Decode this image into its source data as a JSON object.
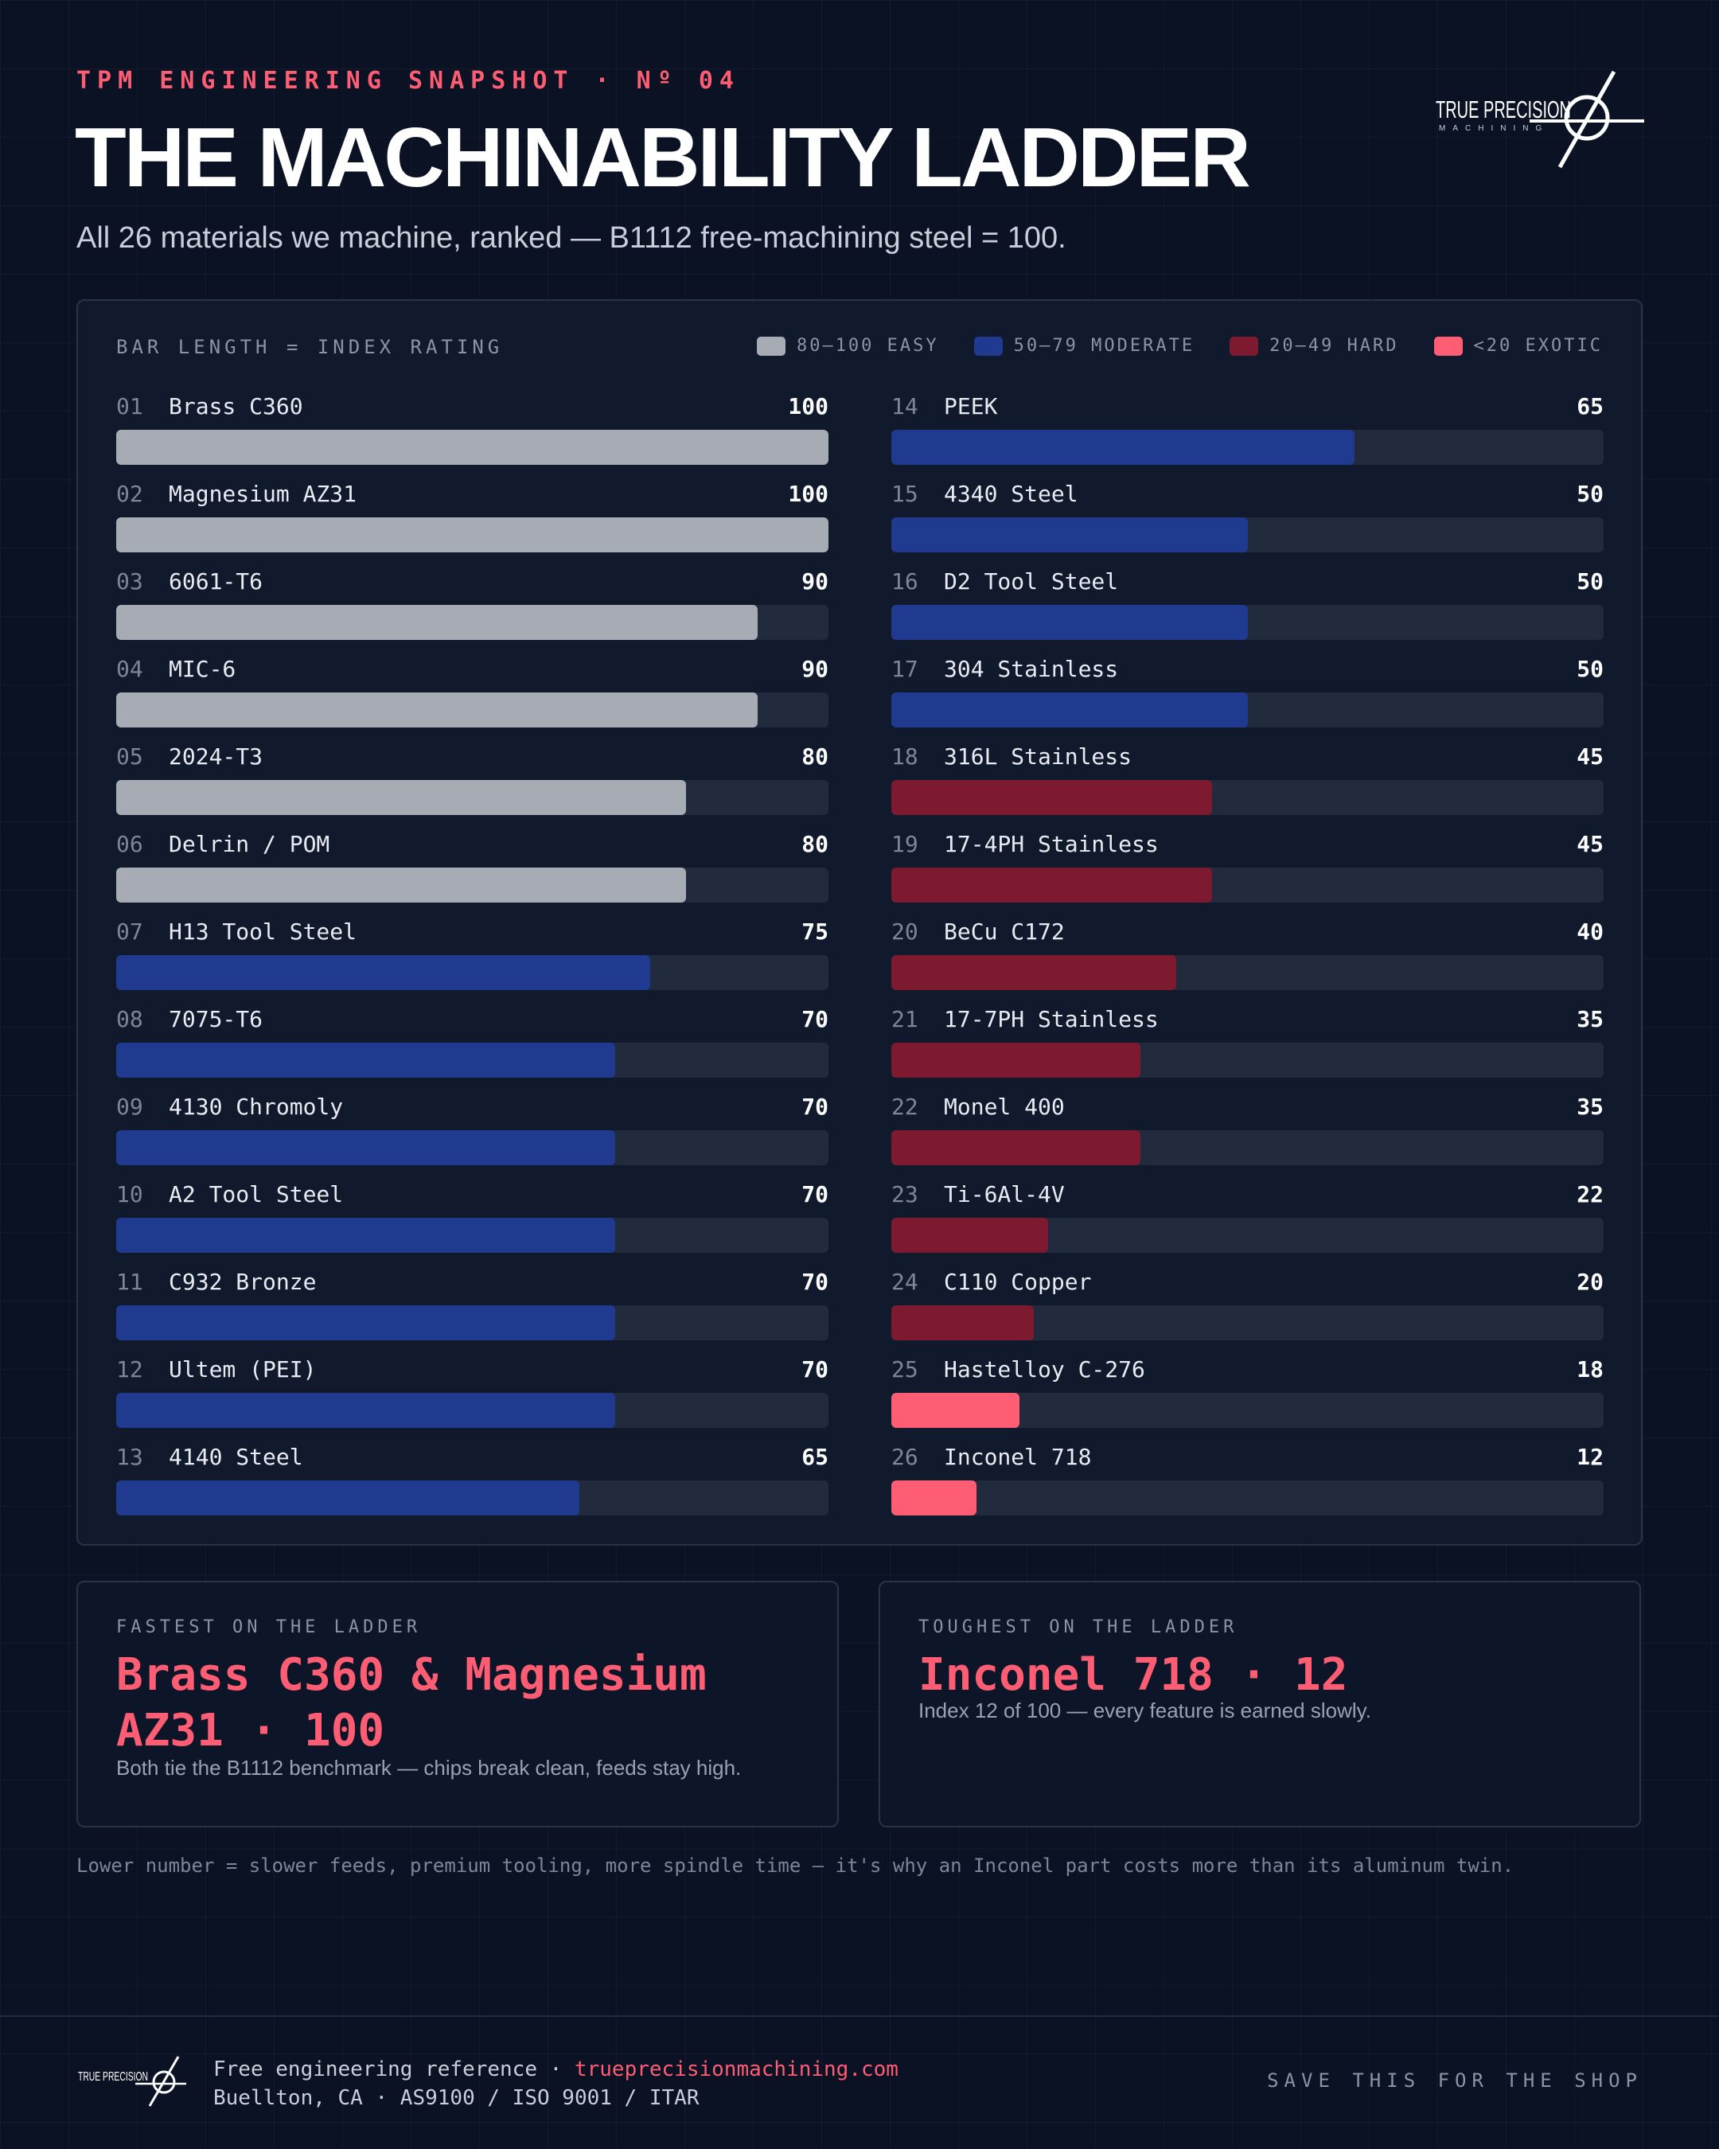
{
  "header": {
    "kicker": "TPM ENGINEERING SNAPSHOT · Nº 04",
    "title": "THE MACHINABILITY LADDER",
    "subtitle": "All 26 materials we machine, ranked — B1112 free-machining steel = 100."
  },
  "logo": {
    "text": "TRUE PRECISION",
    "subtext": "MACHINING"
  },
  "chart_data": {
    "type": "bar",
    "orientation": "horizontal",
    "axis_caption": "BAR LENGTH = INDEX RATING",
    "xlim": [
      0,
      100
    ],
    "grid": false,
    "legend_position": "top-right",
    "legend": [
      {
        "label": "80–100 EASY",
        "color": "#a7abb3"
      },
      {
        "label": "50–79 MODERATE",
        "color": "#1f3a8f"
      },
      {
        "label": "20–49 HARD",
        "color": "#7e1a30"
      },
      {
        "label": "<20 EXOTIC",
        "color": "#ff5d73"
      }
    ],
    "bars": [
      {
        "rank": "01",
        "name": "Brass C360",
        "value": 100,
        "tier": 0
      },
      {
        "rank": "02",
        "name": "Magnesium AZ31",
        "value": 100,
        "tier": 0
      },
      {
        "rank": "03",
        "name": "6061-T6",
        "value": 90,
        "tier": 0
      },
      {
        "rank": "04",
        "name": "MIC-6",
        "value": 90,
        "tier": 0
      },
      {
        "rank": "05",
        "name": "2024-T3",
        "value": 80,
        "tier": 0
      },
      {
        "rank": "06",
        "name": "Delrin / POM",
        "value": 80,
        "tier": 0
      },
      {
        "rank": "07",
        "name": "H13 Tool Steel",
        "value": 75,
        "tier": 1
      },
      {
        "rank": "08",
        "name": "7075-T6",
        "value": 70,
        "tier": 1
      },
      {
        "rank": "09",
        "name": "4130 Chromoly",
        "value": 70,
        "tier": 1
      },
      {
        "rank": "10",
        "name": "A2 Tool Steel",
        "value": 70,
        "tier": 1
      },
      {
        "rank": "11",
        "name": "C932 Bronze",
        "value": 70,
        "tier": 1
      },
      {
        "rank": "12",
        "name": "Ultem (PEI)",
        "value": 70,
        "tier": 1
      },
      {
        "rank": "13",
        "name": "4140 Steel",
        "value": 65,
        "tier": 1
      },
      {
        "rank": "14",
        "name": "PEEK",
        "value": 65,
        "tier": 1
      },
      {
        "rank": "15",
        "name": "4340 Steel",
        "value": 50,
        "tier": 1
      },
      {
        "rank": "16",
        "name": "D2 Tool Steel",
        "value": 50,
        "tier": 1
      },
      {
        "rank": "17",
        "name": "304 Stainless",
        "value": 50,
        "tier": 1
      },
      {
        "rank": "18",
        "name": "316L Stainless",
        "value": 45,
        "tier": 2
      },
      {
        "rank": "19",
        "name": "17-4PH Stainless",
        "value": 45,
        "tier": 2
      },
      {
        "rank": "20",
        "name": "BeCu C172",
        "value": 40,
        "tier": 2
      },
      {
        "rank": "21",
        "name": "17-7PH Stainless",
        "value": 35,
        "tier": 2
      },
      {
        "rank": "22",
        "name": "Monel 400",
        "value": 35,
        "tier": 2
      },
      {
        "rank": "23",
        "name": "Ti-6Al-4V",
        "value": 22,
        "tier": 2
      },
      {
        "rank": "24",
        "name": "C110 Copper",
        "value": 20,
        "tier": 2
      },
      {
        "rank": "25",
        "name": "Hastelloy C-276",
        "value": 18,
        "tier": 3
      },
      {
        "rank": "26",
        "name": "Inconel 718",
        "value": 12,
        "tier": 3
      }
    ]
  },
  "cards": {
    "fastest": {
      "label": "FASTEST ON THE LADDER",
      "value": "Brass C360 & Magnesium AZ31 · 100",
      "note": "Both tie the B1112 benchmark — chips break clean, feeds stay high."
    },
    "toughest": {
      "label": "TOUGHEST ON THE LADDER",
      "value": "Inconel 718 · 12",
      "note": "Index 12 of 100 — every feature is earned slowly."
    }
  },
  "footnote": "Lower number = slower feeds, premium tooling, more spindle time — it's why an Inconel part costs more than its aluminum twin.",
  "footer": {
    "line1_prefix": "Free engineering reference · ",
    "link": "trueprecisionmachining.com",
    "line2": "Buellton, CA · AS9100 / ISO 9001 / ITAR",
    "cta": "SAVE THIS FOR THE SHOP"
  }
}
